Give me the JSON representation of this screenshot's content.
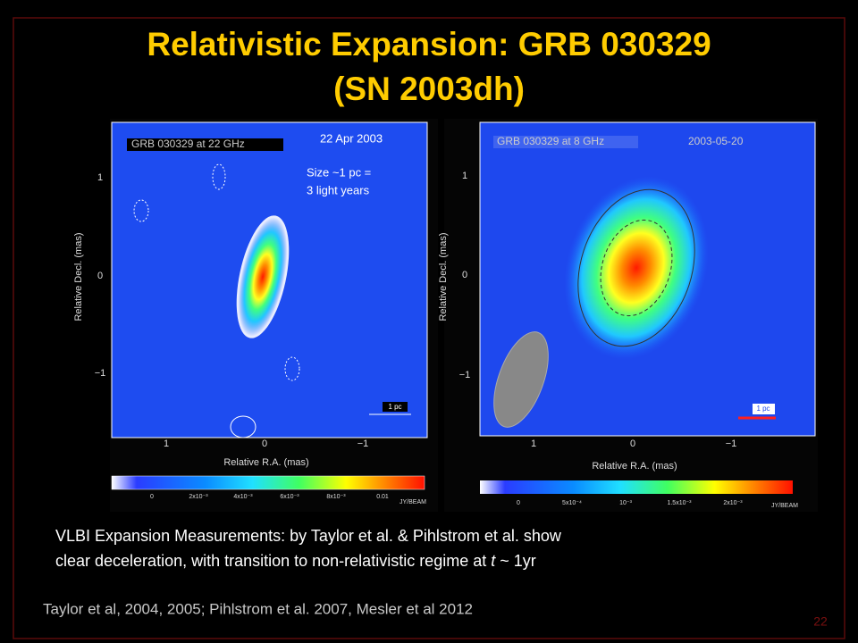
{
  "title": [
    "Relativistic Expansion: GRB 030329",
    "(SN 2003dh)"
  ],
  "left_image": {
    "label": "GRB 030329 at 22 GHz",
    "date": "22 Apr 2003",
    "size_note": [
      "Size ~1 pc =",
      "3 light years"
    ],
    "y_axis": "Relative Decl. (mas)",
    "x_axis": "Relative R.A. (mas)",
    "y_ticks": [
      "1",
      "0",
      "−1"
    ],
    "x_ticks": [
      "1",
      "0",
      "−1"
    ],
    "scale_bar": "1 pc",
    "colorbar": [
      "0",
      "2x10⁻³",
      "4x10⁻³",
      "6x10⁻³",
      "8x10⁻³",
      "0.01",
      "JY/BEAM"
    ]
  },
  "right_image": {
    "label": "GRB 030329 at 8 GHz",
    "date": "2003-05-20",
    "y_axis": "Relative Decl. (mas)",
    "x_axis": "Relative R.A. (mas)",
    "y_ticks": [
      "1",
      "0",
      "−1"
    ],
    "x_ticks": [
      "1",
      "0",
      "−1"
    ],
    "scale_bar": "1 pc",
    "colorbar": [
      "0",
      "5x10⁻⁴",
      "10⁻³",
      "1.5x10⁻³",
      "2x10⁻³",
      "JY/BEAM"
    ]
  },
  "body": {
    "line1": "VLBI Expansion Measurements:  by Taylor et al. & Pihlstrom et al. show",
    "line2_start": "clear deceleration, with transition to non-relativistic regime at ",
    "line2_var": "t",
    "line2_end": " ~ 1yr"
  },
  "citation": "Taylor et al, 2004, 2005; Pihlstrom et al. 2007, Mesler et al 2012",
  "page_number": "22"
}
